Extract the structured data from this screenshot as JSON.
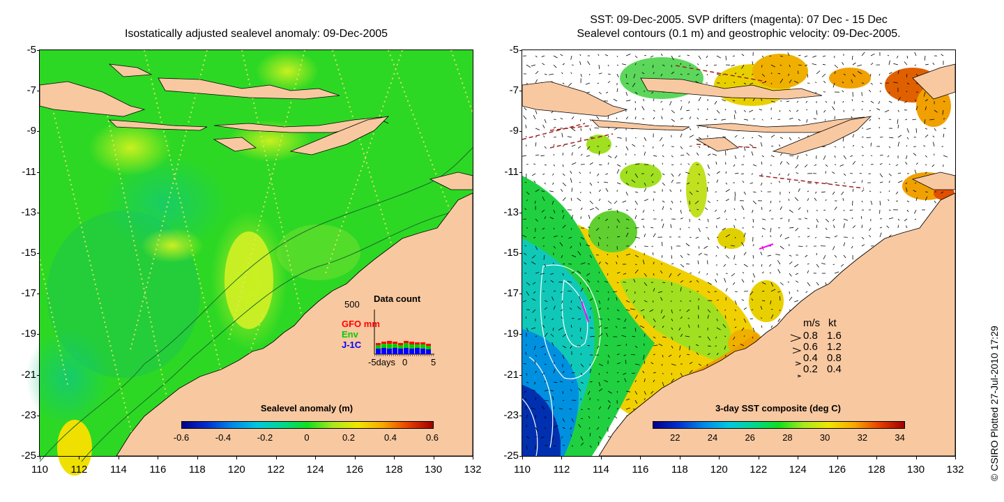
{
  "left_panel": {
    "title": "Isostatically adjusted sealevel anomaly: 09-Dec-2005",
    "colorbar": {
      "label": "Sealevel anomaly (m)",
      "ticks": [
        "-0.6",
        "-0.4",
        "-0.2",
        "0",
        "0.2",
        "0.4",
        "0.6"
      ],
      "colors": [
        "#00008c",
        "#0030d0",
        "#0088e8",
        "#00c8e0",
        "#00d890",
        "#10e020",
        "#a8e820",
        "#f0e800",
        "#f8a800",
        "#e84000",
        "#a00000"
      ]
    },
    "data_count": {
      "title": "Data count",
      "ymax_label": "500",
      "legend": [
        {
          "label": "GFO mm",
          "color": "#ff0000"
        },
        {
          "label": "Env",
          "color": "#00cc00"
        },
        {
          "label": "J-1C",
          "color": "#0000ff"
        }
      ],
      "xaxis_ticks": [
        "-5days",
        "0",
        "5"
      ]
    }
  },
  "right_panel": {
    "title_line1": "SST: 09-Dec-2005. SVP drifters (magenta): 07 Dec - 15 Dec",
    "title_line2": "Sealevel contours (0.1 m) and geostrophic velocity: 09-Dec-2005.",
    "colorbar": {
      "label": "3-day SST composite (deg C)",
      "ticks": [
        "22",
        "24",
        "26",
        "28",
        "30",
        "32",
        "34"
      ],
      "colors": [
        "#00008c",
        "#0030d0",
        "#0088e8",
        "#00c8e0",
        "#00d890",
        "#10e020",
        "#a8e820",
        "#f0e800",
        "#f8a800",
        "#e84000",
        "#a00000"
      ]
    },
    "velocity_legend": {
      "header_ms": "m/s",
      "header_kt": "kt",
      "rows": [
        {
          "ms": "0.8",
          "kt": "1.6"
        },
        {
          "ms": "0.6",
          "kt": "1.2"
        },
        {
          "ms": "0.4",
          "kt": "0.8"
        },
        {
          "ms": "0.2",
          "kt": "0.4"
        }
      ]
    }
  },
  "axes": {
    "y_ticks": [
      "-5",
      "-7",
      "-9",
      "-11",
      "-13",
      "-15",
      "-17",
      "-19",
      "-21",
      "-23",
      "-25"
    ],
    "x_ticks": [
      "110",
      "112",
      "114",
      "116",
      "118",
      "120",
      "122",
      "124",
      "126",
      "128",
      "130",
      "132"
    ]
  },
  "colors": {
    "land": "#f8c8a0",
    "ocean_green": "#20d820",
    "cloud": "#ffffff"
  },
  "credit": "© CSIRO Plotted 27-Jul-2010 17:29"
}
